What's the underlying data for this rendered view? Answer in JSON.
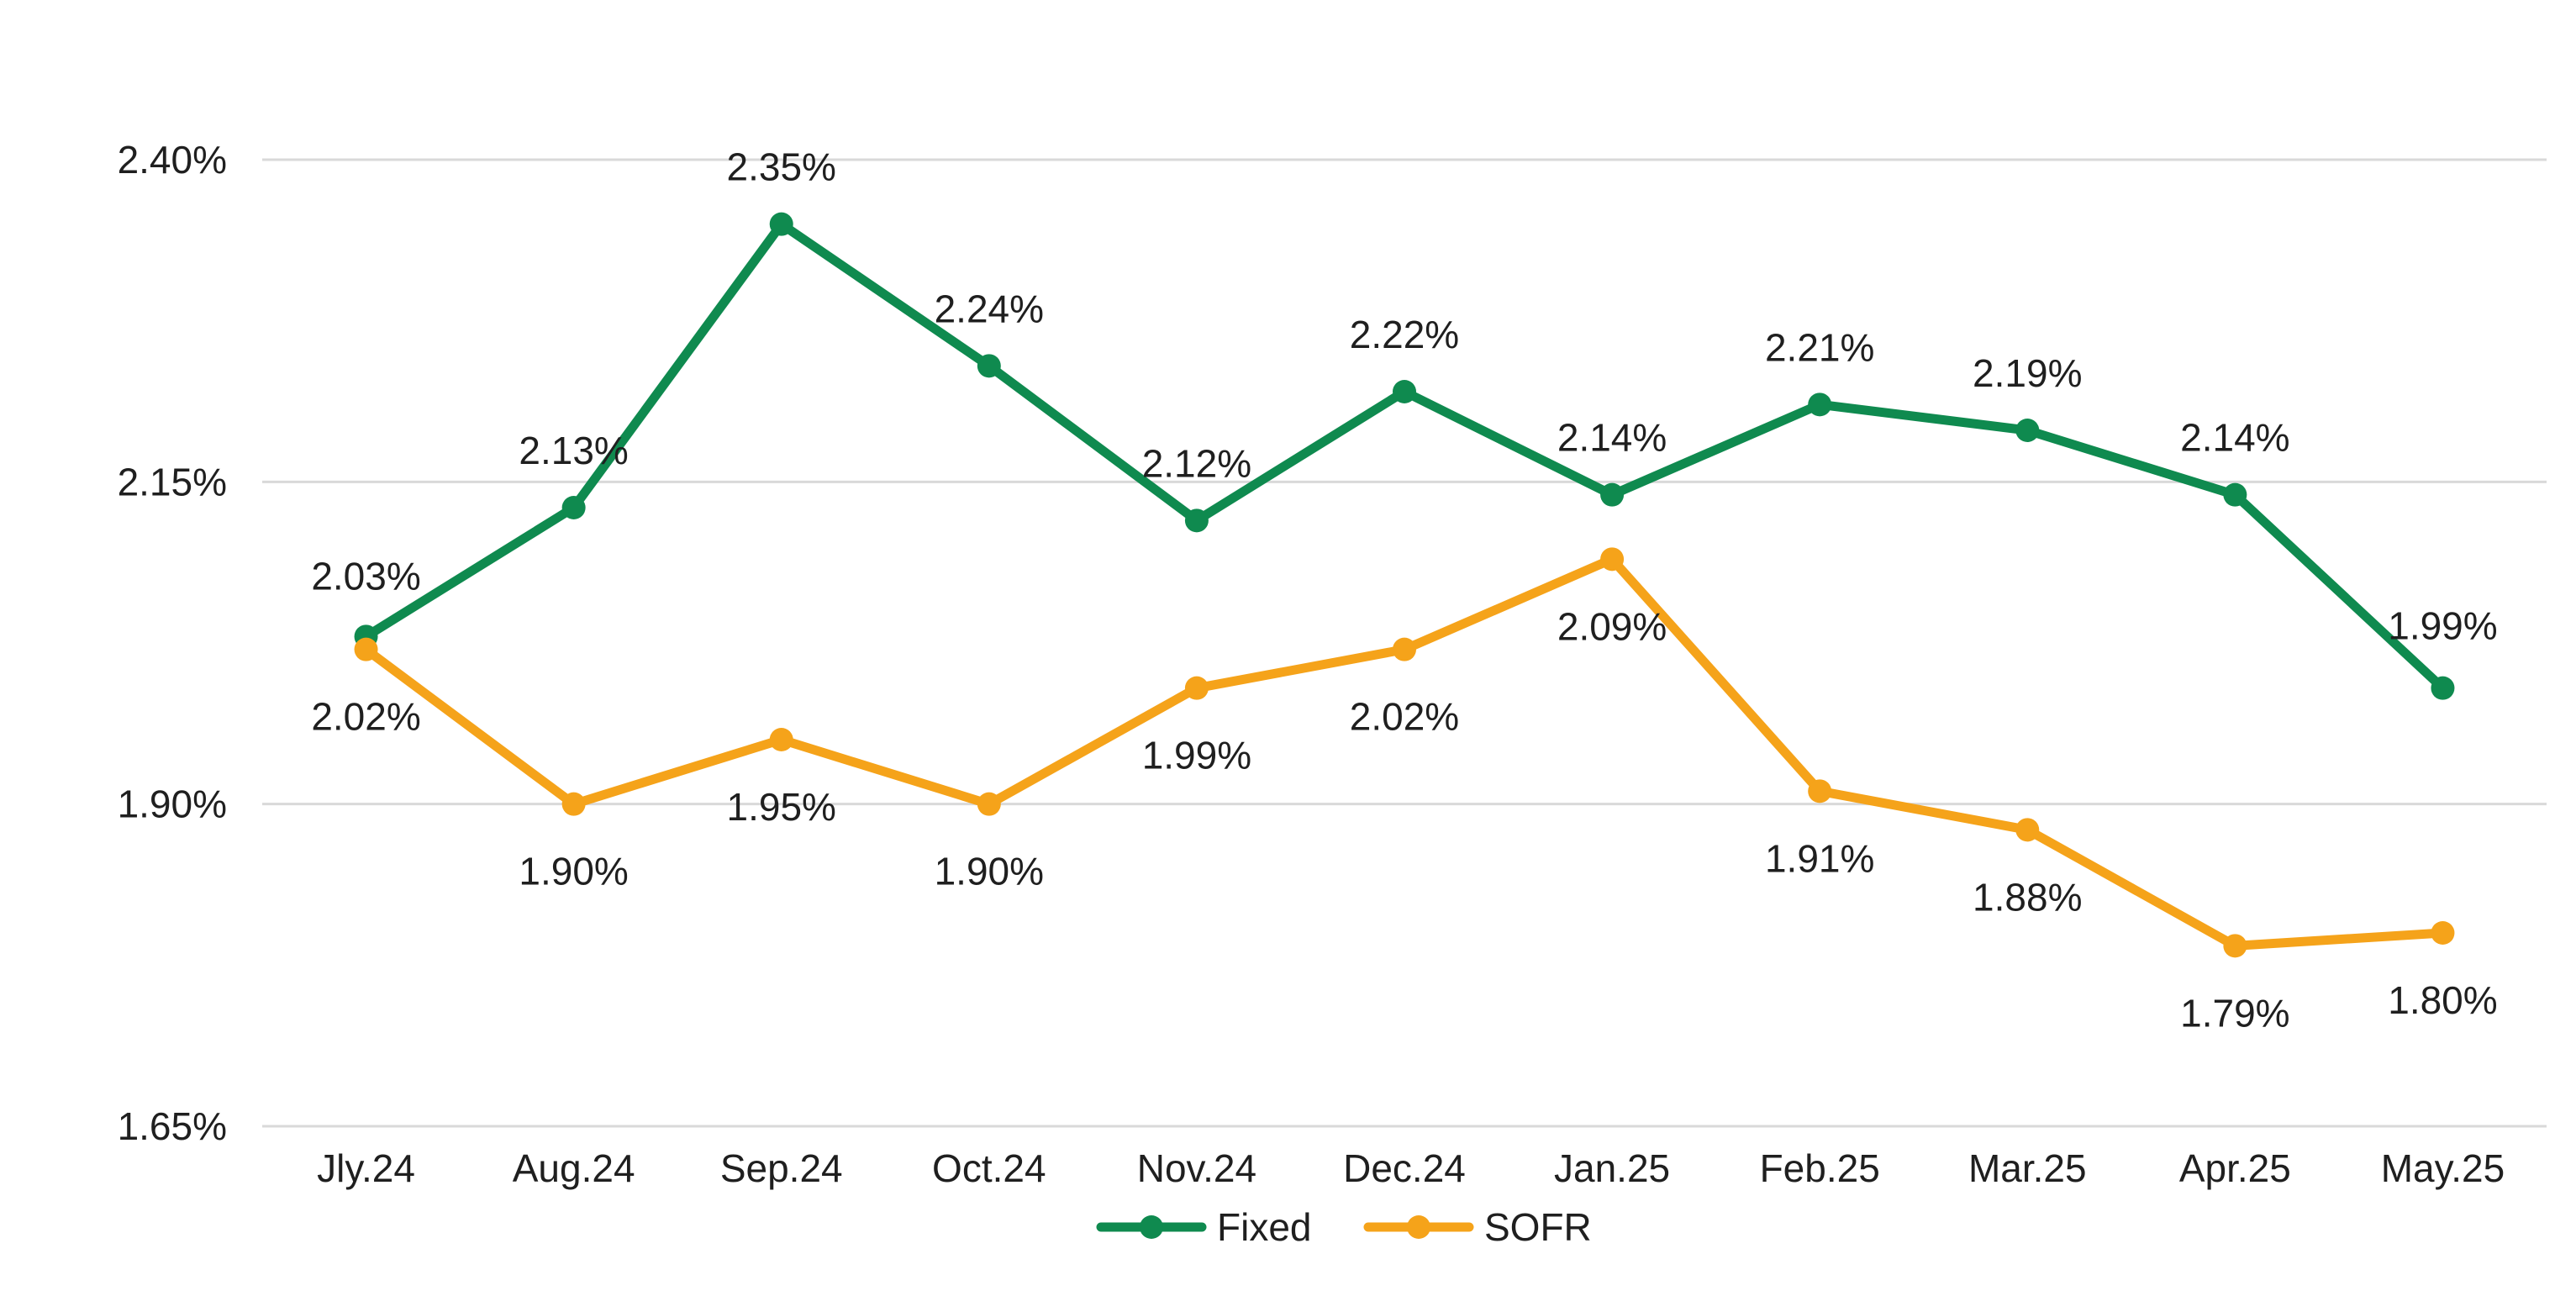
{
  "chart_data": {
    "type": "line",
    "categories": [
      "Jly.24",
      "Aug.24",
      "Sep.24",
      "Oct.24",
      "Nov.24",
      "Dec.24",
      "Jan.25",
      "Feb.25",
      "Mar.25",
      "Apr.25",
      "May.25"
    ],
    "series": [
      {
        "name": "Fixed",
        "color": "#0f8a4f",
        "values": [
          2.03,
          2.13,
          2.35,
          2.24,
          2.12,
          2.22,
          2.14,
          2.21,
          2.19,
          2.14,
          1.99
        ],
        "labels": [
          "2.03%",
          "2.13%",
          "2.35%",
          "2.24%",
          "2.12%",
          "2.22%",
          "2.14%",
          "2.21%",
          "2.19%",
          "2.14%",
          "1.99%"
        ]
      },
      {
        "name": "SOFR",
        "color": "#f5a31a",
        "values": [
          2.02,
          1.9,
          1.95,
          1.9,
          1.99,
          2.02,
          2.09,
          1.91,
          1.88,
          1.79,
          1.8
        ],
        "labels": [
          "2.02%",
          "1.90%",
          "1.95%",
          "1.90%",
          "1.99%",
          "2.02%",
          "2.09%",
          "1.91%",
          "1.88%",
          "1.79%",
          "1.80%"
        ]
      }
    ],
    "ylim": [
      1.65,
      2.4
    ],
    "yticks": [
      1.65,
      1.9,
      2.15,
      2.4
    ],
    "ytick_labels": [
      "1.65%",
      "1.90%",
      "2.15%",
      "2.40%"
    ],
    "grid": "horizontal",
    "legend": "bottom-center",
    "gridline_color": "#d9d9d9"
  }
}
